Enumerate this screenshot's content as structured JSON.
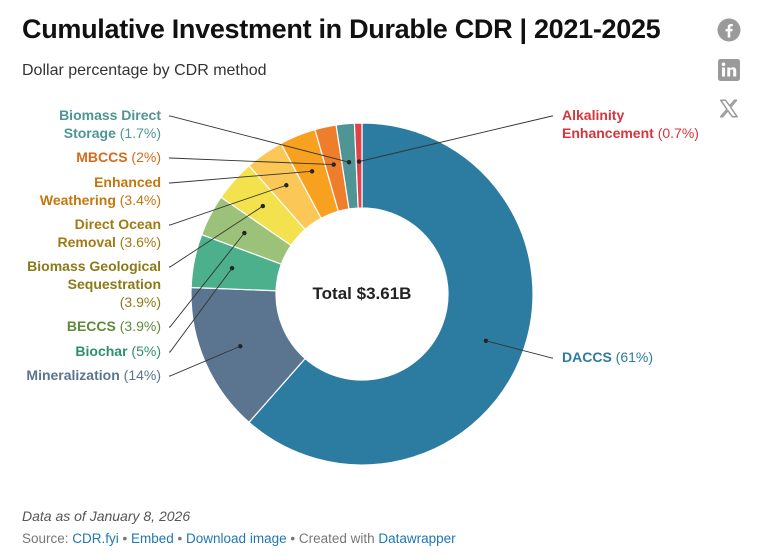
{
  "header": {
    "title": "Cumulative Investment in Durable CDR | 2021-2025",
    "subtitle": "Dollar percentage by CDR method"
  },
  "share": {
    "icons": [
      "facebook-icon",
      "linkedin-icon",
      "x-icon"
    ],
    "color": "#9a9a9a"
  },
  "chart_data": {
    "type": "pie",
    "donut": true,
    "center_label": "Total $3.61B",
    "slices": [
      {
        "name": "DACCS",
        "pct_label": "(61%)",
        "value": 61,
        "color": "#2b7ca0",
        "label_color": "#2b7ca0"
      },
      {
        "name": "Mineralization",
        "pct_label": "(14%)",
        "value": 14,
        "color": "#5b7590",
        "label_color": "#5b7590"
      },
      {
        "name": "Biochar",
        "pct_label": "(5%)",
        "value": 5,
        "color": "#4bb08b",
        "label_color": "#2e8f6d"
      },
      {
        "name": "BECCS",
        "pct_label": "(3.9%)",
        "value": 3.9,
        "color": "#9cc27a",
        "label_color": "#5f8a3a"
      },
      {
        "name": "Biomass Geological Sequestration",
        "pct_label": "(3.9%)",
        "value": 3.9,
        "color": "#f3e14d",
        "label_color": "#8a7b16"
      },
      {
        "name": "Direct Ocean Removal",
        "pct_label": "(3.6%)",
        "value": 3.6,
        "color": "#fbc756",
        "label_color": "#a17a12"
      },
      {
        "name": "Enhanced Weathering",
        "pct_label": "(3.4%)",
        "value": 3.4,
        "color": "#f7a11e",
        "label_color": "#c4760e"
      },
      {
        "name": "MBCCS",
        "pct_label": "(2%)",
        "value": 2,
        "color": "#ee7d2c",
        "label_color": "#d56a1a"
      },
      {
        "name": "Biomass Direct Storage",
        "pct_label": "(1.7%)",
        "value": 1.7,
        "color": "#4f9595",
        "label_color": "#4f9595"
      },
      {
        "name": "Alkalinity Enhancement",
        "pct_label": "(0.7%)",
        "value": 0.7,
        "color": "#e0424a",
        "label_color": "#d8343c"
      }
    ]
  },
  "footer": {
    "note": "Data as of January 8, 2026",
    "source_prefix": "Source: ",
    "source_link": "CDR.fyi",
    "sep1": " • ",
    "embed": "Embed",
    "sep2": " • ",
    "download": "Download image",
    "created_prefix": " • Created with ",
    "datawrapper": "Datawrapper"
  }
}
